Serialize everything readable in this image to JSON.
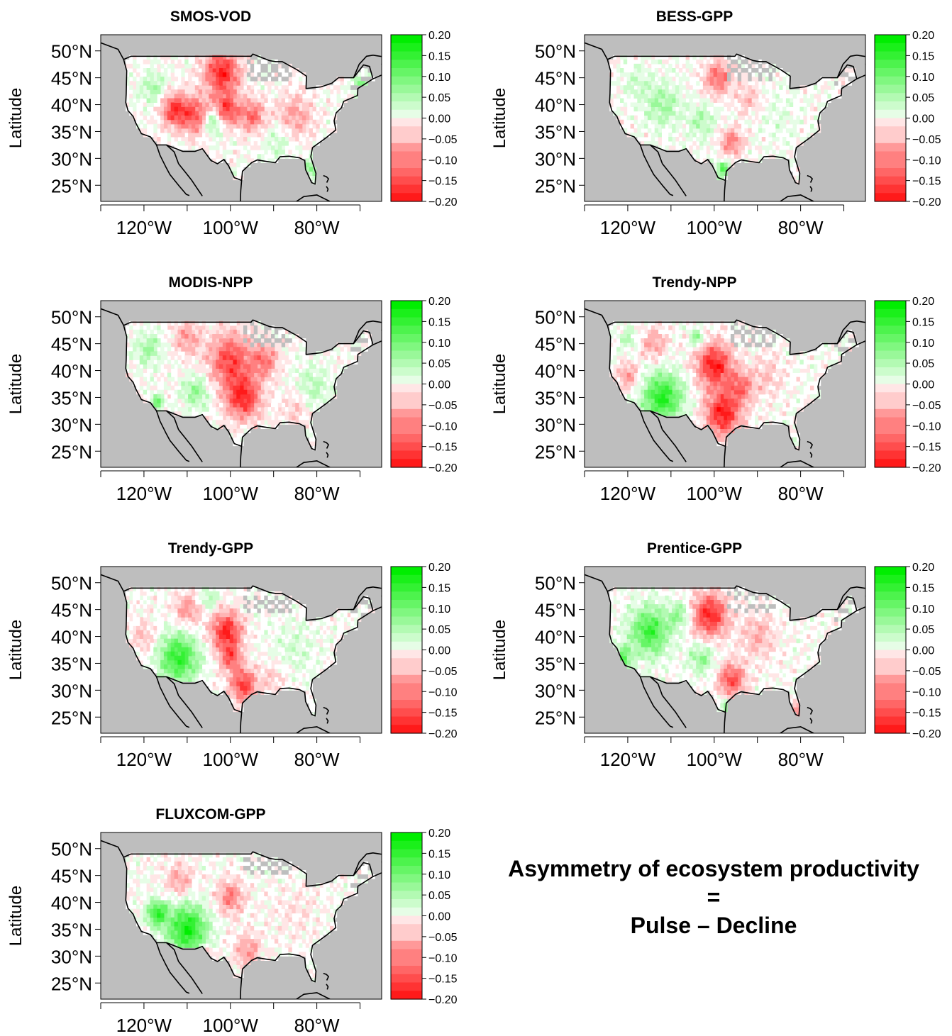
{
  "chart_data": [
    {
      "type": "heatmap",
      "title": "SMOS-VOD",
      "ylabel": "Latitude",
      "lat_ticks": [
        "50°N",
        "45°N",
        "40°N",
        "35°N",
        "30°N",
        "25°N"
      ],
      "lon_ticks": [
        "120°W",
        "100°W",
        "80°W"
      ],
      "xlim": [
        -130,
        -65
      ],
      "ylim": [
        22,
        53
      ],
      "colorbar": {
        "ticks": [
          "0.20",
          "0.15",
          "0.10",
          "0.05",
          "0.00",
          "−0.05",
          "−0.10",
          "−0.15",
          "−0.20"
        ],
        "range": [
          -0.2,
          0.2
        ]
      },
      "hotspots": [
        {
          "lon": -102,
          "lat": 46,
          "value": -0.17,
          "r": 4
        },
        {
          "lon": -113,
          "lat": 39,
          "value": -0.15,
          "r": 3
        },
        {
          "lon": -108,
          "lat": 38,
          "value": -0.13,
          "r": 3.5
        },
        {
          "lon": -101,
          "lat": 39,
          "value": -0.15,
          "r": 3
        },
        {
          "lon": -95,
          "lat": 38,
          "value": -0.11,
          "r": 3
        },
        {
          "lon": -104,
          "lat": 37,
          "value": 0.12,
          "r": 2.5
        },
        {
          "lon": -118,
          "lat": 43,
          "value": 0.06,
          "r": 3
        },
        {
          "lon": -85,
          "lat": 38,
          "value": -0.07,
          "r": 4
        },
        {
          "lon": -81,
          "lat": 28,
          "value": 0.08,
          "r": 2
        },
        {
          "lon": -70,
          "lat": 44,
          "value": 0.1,
          "r": 1.5
        },
        {
          "lon": -89,
          "lat": 33,
          "value": 0.04,
          "r": 3
        }
      ]
    },
    {
      "type": "heatmap",
      "title": "BESS-GPP",
      "ylabel": "Latitude",
      "lat_ticks": [
        "50°N",
        "45°N",
        "40°N",
        "35°N",
        "30°N",
        "25°N"
      ],
      "lon_ticks": [
        "120°W",
        "100°W",
        "80°W"
      ],
      "xlim": [
        -130,
        -65
      ],
      "ylim": [
        22,
        53
      ],
      "colorbar": {
        "ticks": [
          "0.20",
          "0.15",
          "0.10",
          "0.05",
          "0.00",
          "−0.05",
          "−0.10",
          "−0.15",
          "−0.20"
        ],
        "range": [
          -0.2,
          0.2
        ]
      },
      "hotspots": [
        {
          "lon": -112,
          "lat": 40,
          "value": 0.07,
          "r": 4
        },
        {
          "lon": -103,
          "lat": 37,
          "value": 0.06,
          "r": 3
        },
        {
          "lon": -99,
          "lat": 45,
          "value": -0.12,
          "r": 3
        },
        {
          "lon": -96,
          "lat": 33,
          "value": -0.1,
          "r": 2.5
        },
        {
          "lon": -98,
          "lat": 28,
          "value": 0.12,
          "r": 1.5
        },
        {
          "lon": -118,
          "lat": 44,
          "value": 0.04,
          "r": 3
        },
        {
          "lon": -85,
          "lat": 38,
          "value": 0.02,
          "r": 5
        },
        {
          "lon": -92,
          "lat": 41,
          "value": -0.05,
          "r": 3
        }
      ]
    },
    {
      "type": "heatmap",
      "title": "MODIS-NPP",
      "ylabel": "Latitude",
      "lat_ticks": [
        "50°N",
        "45°N",
        "40°N",
        "35°N",
        "30°N",
        "25°N"
      ],
      "lon_ticks": [
        "120°W",
        "100°W",
        "80°W"
      ],
      "xlim": [
        -130,
        -65
      ],
      "ylim": [
        22,
        53
      ],
      "colorbar": {
        "ticks": [
          "0.20",
          "0.15",
          "0.10",
          "0.05",
          "0.00",
          "−0.05",
          "−0.10",
          "−0.15",
          "−0.20"
        ],
        "range": [
          -0.2,
          0.2
        ]
      },
      "hotspots": [
        {
          "lon": -100,
          "lat": 42,
          "value": -0.14,
          "r": 5
        },
        {
          "lon": -97,
          "lat": 35,
          "value": -0.16,
          "r": 4
        },
        {
          "lon": -92,
          "lat": 42,
          "value": -0.1,
          "r": 3
        },
        {
          "lon": -110,
          "lat": 46,
          "value": -0.08,
          "r": 3
        },
        {
          "lon": -108,
          "lat": 36,
          "value": 0.08,
          "r": 3
        },
        {
          "lon": -119,
          "lat": 44,
          "value": 0.07,
          "r": 3
        },
        {
          "lon": -117,
          "lat": 34,
          "value": 0.12,
          "r": 1.5
        },
        {
          "lon": -81,
          "lat": 37,
          "value": 0.05,
          "r": 4
        },
        {
          "lon": -85,
          "lat": 33,
          "value": -0.05,
          "r": 3
        }
      ]
    },
    {
      "type": "heatmap",
      "title": "Trendy-NPP",
      "ylabel": "Latitude",
      "lat_ticks": [
        "50°N",
        "45°N",
        "40°N",
        "35°N",
        "30°N",
        "25°N"
      ],
      "lon_ticks": [
        "120°W",
        "100°W",
        "80°W"
      ],
      "xlim": [
        -130,
        -65
      ],
      "ylim": [
        22,
        53
      ],
      "colorbar": {
        "ticks": [
          "0.20",
          "0.15",
          "0.10",
          "0.05",
          "0.00",
          "−0.05",
          "−0.10",
          "−0.15",
          "−0.20"
        ],
        "range": [
          -0.2,
          0.2
        ]
      },
      "hotspots": [
        {
          "lon": -112,
          "lat": 35,
          "value": 0.17,
          "r": 4.5
        },
        {
          "lon": -100,
          "lat": 41,
          "value": -0.18,
          "r": 4
        },
        {
          "lon": -98,
          "lat": 32,
          "value": -0.18,
          "r": 4
        },
        {
          "lon": -94,
          "lat": 37,
          "value": -0.1,
          "r": 3
        },
        {
          "lon": -114,
          "lat": 45,
          "value": -0.07,
          "r": 3
        },
        {
          "lon": -120,
          "lat": 39,
          "value": -0.08,
          "r": 2.5
        },
        {
          "lon": -104,
          "lat": 46,
          "value": 0.1,
          "r": 1.5
        },
        {
          "lon": -88,
          "lat": 39,
          "value": -0.04,
          "r": 4
        },
        {
          "lon": -120,
          "lat": 46,
          "value": 0.05,
          "r": 2
        }
      ]
    },
    {
      "type": "heatmap",
      "title": "Trendy-GPP",
      "ylabel": "Latitude",
      "lat_ticks": [
        "50°N",
        "45°N",
        "40°N",
        "35°N",
        "30°N",
        "25°N"
      ],
      "lon_ticks": [
        "120°W",
        "100°W",
        "80°W"
      ],
      "xlim": [
        -130,
        -65
      ],
      "ylim": [
        22,
        53
      ],
      "colorbar": {
        "ticks": [
          "0.20",
          "0.15",
          "0.10",
          "0.05",
          "0.00",
          "−0.05",
          "−0.10",
          "−0.15",
          "−0.20"
        ],
        "range": [
          -0.2,
          0.2
        ]
      },
      "hotspots": [
        {
          "lon": -112,
          "lat": 36,
          "value": 0.16,
          "r": 4.5
        },
        {
          "lon": -101,
          "lat": 41,
          "value": -0.17,
          "r": 3.5
        },
        {
          "lon": -97,
          "lat": 31,
          "value": -0.15,
          "r": 3
        },
        {
          "lon": -100,
          "lat": 36,
          "value": -0.12,
          "r": 2.5
        },
        {
          "lon": -110,
          "lat": 45,
          "value": -0.08,
          "r": 3
        },
        {
          "lon": -120,
          "lat": 40,
          "value": -0.05,
          "r": 3
        },
        {
          "lon": -105,
          "lat": 47,
          "value": 0.06,
          "r": 2
        },
        {
          "lon": -85,
          "lat": 38,
          "value": 0.03,
          "r": 5
        },
        {
          "lon": -90,
          "lat": 32,
          "value": -0.04,
          "r": 3
        }
      ]
    },
    {
      "type": "heatmap",
      "title": "Prentice-GPP",
      "ylabel": "Latitude",
      "lat_ticks": [
        "50°N",
        "45°N",
        "40°N",
        "35°N",
        "30°N",
        "25°N"
      ],
      "lon_ticks": [
        "120°W",
        "100°W",
        "80°W"
      ],
      "xlim": [
        -130,
        -65
      ],
      "ylim": [
        22,
        53
      ],
      "colorbar": {
        "ticks": [
          "0.20",
          "0.15",
          "0.10",
          "0.05",
          "0.00",
          "−0.05",
          "−0.10",
          "−0.15",
          "−0.20"
        ],
        "range": [
          -0.2,
          0.2
        ]
      },
      "hotspots": [
        {
          "lon": -115,
          "lat": 41,
          "value": 0.15,
          "r": 4.5
        },
        {
          "lon": -101,
          "lat": 44,
          "value": -0.17,
          "r": 4
        },
        {
          "lon": -96,
          "lat": 32,
          "value": -0.14,
          "r": 3
        },
        {
          "lon": -103,
          "lat": 36,
          "value": 0.08,
          "r": 3
        },
        {
          "lon": -108,
          "lat": 44,
          "value": 0.08,
          "r": 2.5
        },
        {
          "lon": -121,
          "lat": 36,
          "value": 0.12,
          "r": 2
        },
        {
          "lon": -97,
          "lat": 27,
          "value": 0.12,
          "r": 1.3
        },
        {
          "lon": -90,
          "lat": 40,
          "value": -0.06,
          "r": 4
        },
        {
          "lon": -81,
          "lat": 26,
          "value": -0.12,
          "r": 1.3
        }
      ]
    },
    {
      "type": "heatmap",
      "title": "FLUXCOM-GPP",
      "ylabel": "Latitude",
      "lat_ticks": [
        "50°N",
        "45°N",
        "40°N",
        "35°N",
        "30°N",
        "25°N"
      ],
      "lon_ticks": [
        "120°W",
        "100°W",
        "80°W"
      ],
      "xlim": [
        -130,
        -65
      ],
      "ylim": [
        22,
        53
      ],
      "colorbar": {
        "ticks": [
          "0.20",
          "0.15",
          "0.10",
          "0.05",
          "0.00",
          "−0.05",
          "−0.10",
          "−0.15",
          "−0.20"
        ],
        "range": [
          -0.2,
          0.2
        ]
      },
      "hotspots": [
        {
          "lon": -110,
          "lat": 35,
          "value": 0.18,
          "r": 4.5
        },
        {
          "lon": -117,
          "lat": 38,
          "value": 0.15,
          "r": 2.5
        },
        {
          "lon": -100,
          "lat": 41,
          "value": -0.1,
          "r": 3
        },
        {
          "lon": -106,
          "lat": 30,
          "value": -0.18,
          "r": 1.5
        },
        {
          "lon": -96,
          "lat": 31,
          "value": -0.08,
          "r": 3
        },
        {
          "lon": -112,
          "lat": 44,
          "value": -0.07,
          "r": 3
        },
        {
          "lon": -85,
          "lat": 38,
          "value": -0.02,
          "r": 5
        }
      ]
    }
  ],
  "annotation": {
    "line1": "Asymmetry of ecosystem productivity",
    "line2": "=",
    "line3": "Pulse – Decline"
  },
  "colors": {
    "land_gray": "#bebebe",
    "positive": "#00ee00",
    "negative": "#ff0000",
    "neutral": "#ffffff"
  }
}
